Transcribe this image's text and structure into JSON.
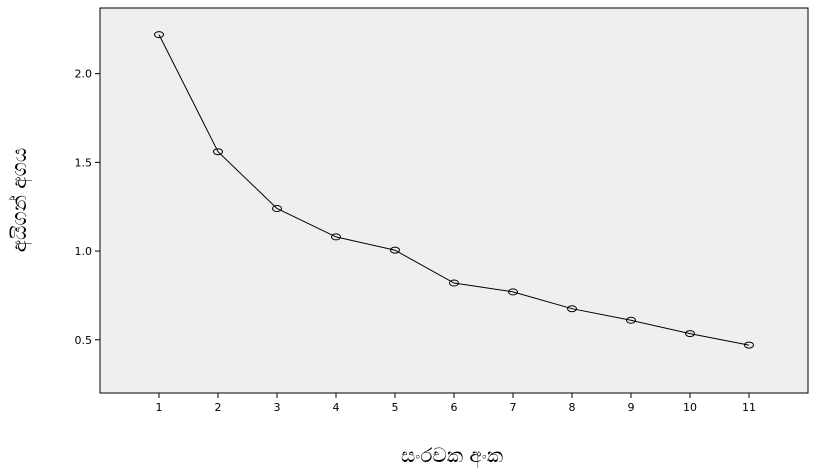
{
  "chart_data": {
    "type": "line",
    "title": "",
    "xlabel": "සංරචක අංක",
    "ylabel": "අයිගන් අගය",
    "x": [
      1,
      2,
      3,
      4,
      5,
      6,
      7,
      8,
      9,
      10,
      11
    ],
    "x_tick_labels": [
      "1",
      "2",
      "3",
      "4",
      "5",
      "6",
      "7",
      "8",
      "9",
      "10",
      "11"
    ],
    "series": [
      {
        "values": [
          2.22,
          1.56,
          1.24,
          1.08,
          1.005,
          0.82,
          0.77,
          0.675,
          0.61,
          0.535,
          0.47
        ]
      }
    ],
    "y_ticks": [
      0.5,
      1.0,
      1.5,
      2.0
    ],
    "y_tick_labels": [
      "0.5",
      "1.0",
      "1.5",
      "2.0"
    ],
    "xlim": [
      0,
      12
    ],
    "ylim": [
      0.2,
      2.37
    ],
    "grid": false,
    "legend": "none",
    "marker": "open-circle",
    "colors": {
      "plot_background": "#efefef",
      "line": "#000000",
      "axis": "#000000"
    }
  }
}
